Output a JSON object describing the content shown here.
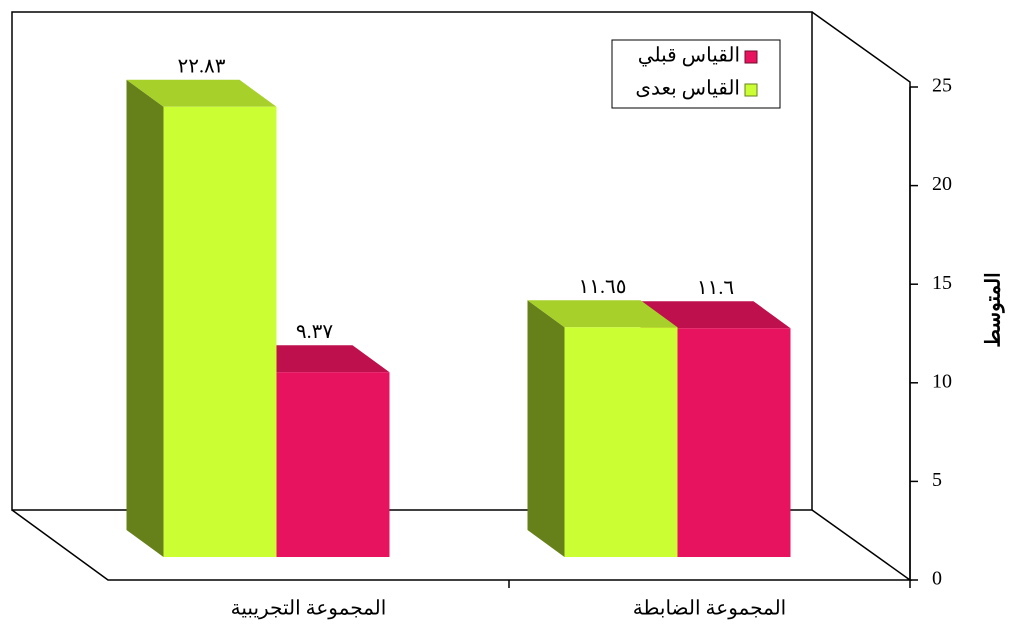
{
  "chart_data": {
    "type": "bar3d",
    "y_label": "المتوسط",
    "categories": [
      "المجموعة التجريبية",
      "المجموعة الضابطة"
    ],
    "series": [
      {
        "name": "القياس قبلي",
        "color": "#e8135e",
        "values": [
          9.37,
          11.6
        ],
        "value_labels": [
          "٩.٣٧",
          "١١.٦"
        ]
      },
      {
        "name": "القياس بعدى",
        "color": "#ccff33",
        "values": [
          22.83,
          11.65
        ],
        "value_labels": [
          "٢٢.٨٣",
          "١١.٦٥"
        ]
      }
    ],
    "ylim": [
      0,
      25
    ],
    "yticks": [
      0,
      5,
      10,
      15,
      20,
      25
    ]
  }
}
